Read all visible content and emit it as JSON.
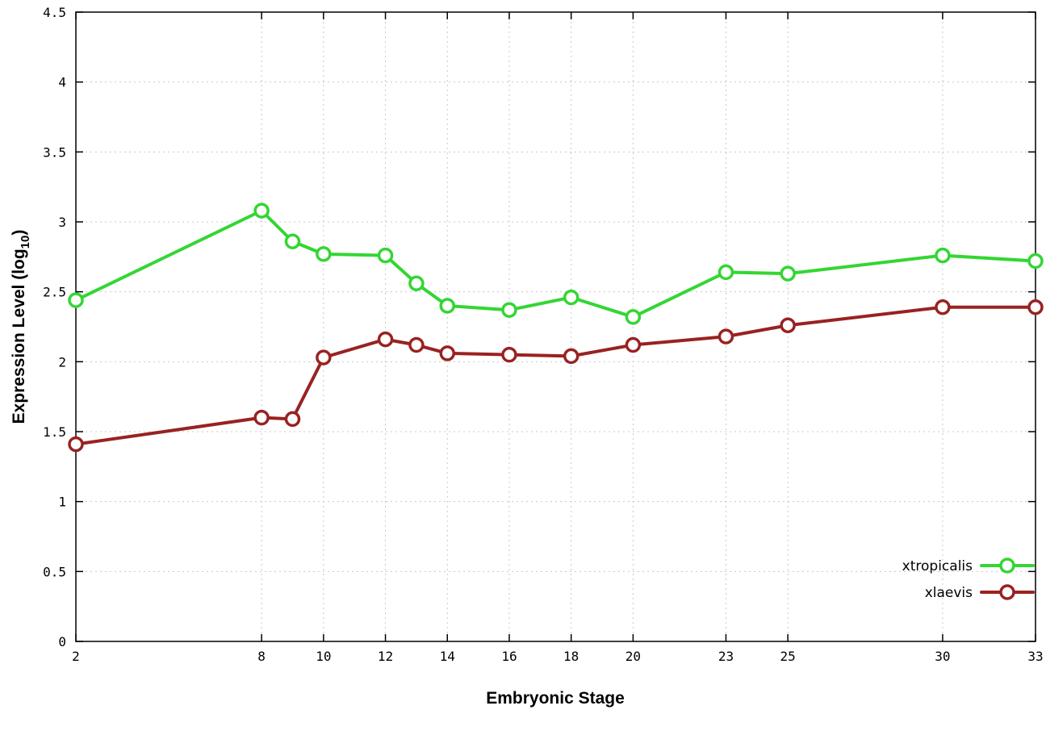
{
  "chart_data": {
    "type": "line",
    "title": "",
    "xlabel": "Embryonic Stage",
    "ylabel": "Expression Level (log10)",
    "ylabel_parts": {
      "main": "Expression Level (log",
      "sub": "10",
      "end": ")"
    },
    "x": [
      2,
      8,
      9,
      10,
      12,
      13,
      14,
      16,
      18,
      20,
      23,
      25,
      30,
      33
    ],
    "xticks": [
      2,
      8,
      10,
      12,
      14,
      16,
      18,
      20,
      23,
      25,
      30,
      33
    ],
    "yticks": [
      0,
      0.5,
      1,
      1.5,
      2,
      2.5,
      3,
      3.5,
      4,
      4.5
    ],
    "xlim": [
      2,
      33
    ],
    "ylim": [
      0,
      4.5
    ],
    "grid": true,
    "legend_position": "bottom-right",
    "series": [
      {
        "name": "xtropicalis",
        "color": "#33d633",
        "values": [
          2.44,
          3.08,
          2.86,
          2.77,
          2.76,
          2.56,
          2.4,
          2.37,
          2.46,
          2.32,
          2.64,
          2.63,
          2.76,
          2.72
        ]
      },
      {
        "name": "xlaevis",
        "color": "#992222",
        "values": [
          1.41,
          1.6,
          1.59,
          2.03,
          2.16,
          2.12,
          2.06,
          2.05,
          2.04,
          2.12,
          2.18,
          2.26,
          2.39,
          2.39
        ]
      }
    ]
  },
  "colors": {
    "background": "#ffffff",
    "border": "#000000",
    "grid": "#c8c8c8"
  }
}
